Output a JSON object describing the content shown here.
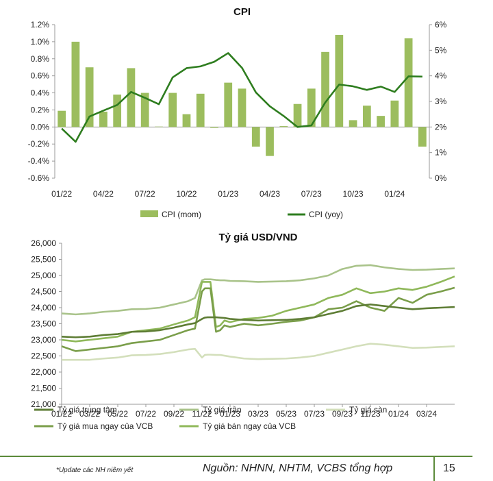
{
  "chart_data": [
    {
      "type": "bar+line",
      "title": "CPI",
      "categories": [
        "01/22",
        "02/22",
        "03/22",
        "04/22",
        "05/22",
        "06/22",
        "07/22",
        "08/22",
        "09/22",
        "10/22",
        "11/22",
        "12/22",
        "01/23",
        "02/23",
        "03/23",
        "04/23",
        "05/23",
        "06/23",
        "07/23",
        "08/23",
        "09/23",
        "10/23",
        "11/23",
        "12/23",
        "01/24",
        "02/24",
        "03/24"
      ],
      "tick_labels": [
        "01/22",
        "04/22",
        "07/22",
        "10/22",
        "01/23",
        "04/23",
        "07/23",
        "10/23",
        "01/24"
      ],
      "series": [
        {
          "name": "CPI (mom)",
          "type": "bar",
          "axis": "left",
          "color": "#9cbd5e",
          "values": [
            0.19,
            1.0,
            0.7,
            0.18,
            0.38,
            0.69,
            0.4,
            0.005,
            0.4,
            0.15,
            0.39,
            -0.01,
            0.52,
            0.45,
            -0.23,
            -0.34,
            0.01,
            0.27,
            0.45,
            0.88,
            1.08,
            0.08,
            0.25,
            0.13,
            0.31,
            1.04,
            -0.23
          ]
        },
        {
          "name": "CPI (yoy)",
          "type": "line",
          "axis": "right",
          "color": "#2e7d1f",
          "values": [
            1.94,
            1.42,
            2.41,
            2.64,
            2.86,
            3.37,
            3.14,
            2.89,
            3.94,
            4.3,
            4.37,
            4.55,
            4.89,
            4.31,
            3.35,
            2.81,
            2.43,
            2.0,
            2.06,
            2.96,
            3.66,
            3.59,
            3.45,
            3.58,
            3.37,
            3.98,
            3.97
          ]
        }
      ],
      "ylim_left": [
        -0.6,
        1.2
      ],
      "ylim_right": [
        0,
        6
      ],
      "left_ticks": [
        "-0.6%",
        "-0.4%",
        "-0.2%",
        "0.0%",
        "0.2%",
        "0.4%",
        "0.6%",
        "0.8%",
        "1.0%",
        "1.2%"
      ],
      "right_ticks": [
        "0%",
        "1%",
        "2%",
        "3%",
        "4%",
        "5%",
        "6%"
      ],
      "legend": [
        "CPI (mom)",
        "CPI (yoy)"
      ]
    },
    {
      "type": "line",
      "title": "Tỷ giá USD/VND",
      "tick_labels": [
        "01/22",
        "03/22",
        "05/22",
        "07/22",
        "09/22",
        "11/22",
        "01/23",
        "03/23",
        "05/23",
        "07/23",
        "09/23",
        "11/23",
        "01/24",
        "03/24"
      ],
      "ylim": [
        21000,
        26000
      ],
      "y_ticks": [
        "21,000",
        "21,500",
        "22,000",
        "22,500",
        "23,000",
        "23,500",
        "24,000",
        "24,500",
        "25,000",
        "25,500",
        "26,000"
      ],
      "x_months": [
        0,
        1,
        2,
        3,
        4,
        5,
        6,
        7,
        8,
        9,
        9.5,
        10,
        10.2,
        10.4,
        10.6,
        11,
        11.3,
        11.6,
        12,
        13,
        14,
        15,
        16,
        17,
        18,
        19,
        20,
        21,
        22,
        23,
        24,
        25,
        26,
        27,
        28
      ],
      "series": [
        {
          "name": "Tỷ giá trung tâm",
          "color": "#5e7d35",
          "values": [
            23100,
            23080,
            23100,
            23150,
            23180,
            23250,
            23260,
            23300,
            23380,
            23480,
            23520,
            23650,
            23690,
            23700,
            23700,
            23700,
            23690,
            23680,
            23650,
            23620,
            23600,
            23610,
            23620,
            23650,
            23700,
            23800,
            23900,
            24050,
            24100,
            24050,
            24000,
            23950,
            23980,
            24000,
            24020
          ]
        },
        {
          "name": "Tỷ giá trần",
          "color": "#a9c38a",
          "values": [
            23820,
            23790,
            23820,
            23870,
            23900,
            23950,
            23960,
            24000,
            24100,
            24200,
            24300,
            24850,
            24880,
            24880,
            24880,
            24860,
            24850,
            24850,
            24830,
            24820,
            24800,
            24810,
            24820,
            24850,
            24910,
            25000,
            25200,
            25300,
            25320,
            25250,
            25200,
            25170,
            25180,
            25200,
            25220
          ]
        },
        {
          "name": "Tỷ giá sàn",
          "color": "#d3dfbb",
          "values": [
            22380,
            22380,
            22380,
            22420,
            22450,
            22520,
            22530,
            22560,
            22620,
            22700,
            22720,
            22450,
            22530,
            22540,
            22540,
            22530,
            22530,
            22510,
            22480,
            22420,
            22400,
            22410,
            22420,
            22450,
            22500,
            22600,
            22700,
            22800,
            22880,
            22850,
            22800,
            22750,
            22760,
            22780,
            22800
          ]
        },
        {
          "name": "Tỷ giá mua ngay của VCB",
          "color": "#7a9e4a",
          "values": [
            22800,
            22650,
            22700,
            22750,
            22800,
            22900,
            22950,
            23000,
            23150,
            23300,
            23350,
            24500,
            24600,
            24600,
            24600,
            23250,
            23300,
            23450,
            23400,
            23500,
            23450,
            23500,
            23560,
            23600,
            23700,
            23950,
            24000,
            24200,
            24000,
            23900,
            24300,
            24150,
            24400,
            24500,
            24620
          ]
        },
        {
          "name": "Tỷ giá bán ngay của VCB",
          "color": "#8fb85a",
          "values": [
            23000,
            22950,
            23000,
            23050,
            23100,
            23250,
            23300,
            23350,
            23480,
            23600,
            23700,
            24800,
            24800,
            24800,
            24800,
            23400,
            23450,
            23600,
            23550,
            23650,
            23680,
            23750,
            23900,
            24000,
            24100,
            24300,
            24400,
            24600,
            24450,
            24500,
            24600,
            24550,
            24650,
            24800,
            24970
          ]
        }
      ],
      "legend": [
        "Tỷ giá trung tâm",
        "Tỷ giá trần",
        "Tỷ giá sàn",
        "Tỷ giá mua ngay của VCB",
        "Tỷ giá bán ngay của VCB"
      ]
    }
  ],
  "footer": {
    "note": "*Update các NH niêm yết",
    "source": "Nguồn: NHNN, NHTM, VCBS tổng hợp",
    "page": "15"
  }
}
